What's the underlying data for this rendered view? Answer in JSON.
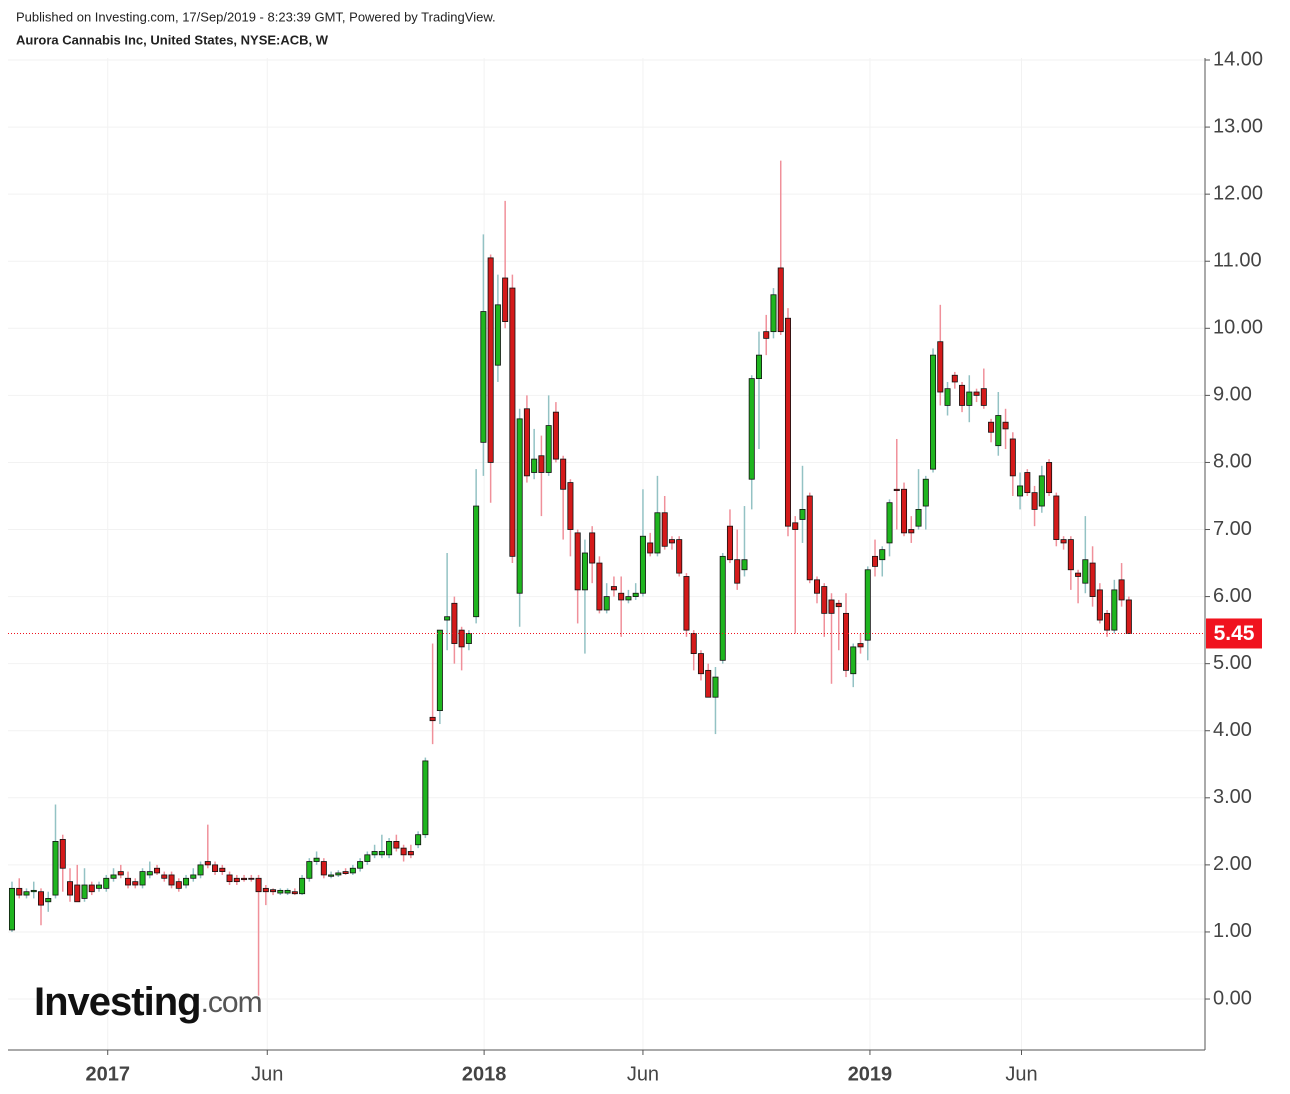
{
  "chart_data": {
    "type": "candlestick",
    "publisher": "Published on Investing.com, 17/Sep/2019 - 8:23:39 GMT, Powered by TradingView.",
    "title": "Aurora Cannabis Inc, United States, NYSE:ACB, W",
    "watermark": {
      "brand": "Investing",
      "suffix": ".com"
    },
    "up_color": "#1fb51f",
    "down_color": "#d41a1a",
    "up_wick_color": "#93c2c4",
    "down_wick_color": "#f0909a",
    "grid": true,
    "ylim": [
      -0.76,
      14.03
    ],
    "yticks": [
      {
        "value": 0,
        "label": "0.00"
      },
      {
        "value": 1,
        "label": "1.00"
      },
      {
        "value": 2,
        "label": "2.00"
      },
      {
        "value": 3,
        "label": "3.00"
      },
      {
        "value": 4,
        "label": "4.00"
      },
      {
        "value": 5,
        "label": "5.00"
      },
      {
        "value": 6,
        "label": "6.00"
      },
      {
        "value": 7,
        "label": "7.00"
      },
      {
        "value": 8,
        "label": "8.00"
      },
      {
        "value": 9,
        "label": "9.00"
      },
      {
        "value": 10,
        "label": "10.00"
      },
      {
        "value": 11,
        "label": "11.00"
      },
      {
        "value": 12,
        "label": "12.00"
      },
      {
        "value": 13,
        "label": "13.00"
      },
      {
        "value": 14,
        "label": "14.00"
      }
    ],
    "xlim": [
      -0.55,
      164.5
    ],
    "xticks": [
      {
        "value": 13.2,
        "label": "2017"
      },
      {
        "value": 35.2,
        "label": "Jun"
      },
      {
        "value": 65.1,
        "label": "2018"
      },
      {
        "value": 87.0,
        "label": "Jun"
      },
      {
        "value": 118.3,
        "label": "2019"
      },
      {
        "value": 139.2,
        "label": "Jun"
      }
    ],
    "last_price": 5.45,
    "last_price_color": "#f0131e",
    "ohlc": [
      [
        1.03,
        1.75,
        1.0,
        1.65
      ],
      [
        1.65,
        1.8,
        1.5,
        1.55
      ],
      [
        1.55,
        1.65,
        1.5,
        1.6
      ],
      [
        1.6,
        1.75,
        1.5,
        1.62
      ],
      [
        1.6,
        1.65,
        1.1,
        1.4
      ],
      [
        1.45,
        1.6,
        1.3,
        1.5
      ],
      [
        1.55,
        2.9,
        1.5,
        2.35
      ],
      [
        2.38,
        2.45,
        1.6,
        1.95
      ],
      [
        1.75,
        1.95,
        1.45,
        1.55
      ],
      [
        1.7,
        2.0,
        1.45,
        1.45
      ],
      [
        1.5,
        1.95,
        1.45,
        1.7
      ],
      [
        1.7,
        1.75,
        1.55,
        1.6
      ],
      [
        1.65,
        1.75,
        1.6,
        1.7
      ],
      [
        1.65,
        1.85,
        1.6,
        1.8
      ],
      [
        1.8,
        1.95,
        1.75,
        1.85
      ],
      [
        1.9,
        2.0,
        1.8,
        1.85
      ],
      [
        1.8,
        1.9,
        1.65,
        1.7
      ],
      [
        1.75,
        1.8,
        1.65,
        1.7
      ],
      [
        1.7,
        1.95,
        1.65,
        1.9
      ],
      [
        1.85,
        2.05,
        1.8,
        1.9
      ],
      [
        1.95,
        2.0,
        1.85,
        1.88
      ],
      [
        1.85,
        1.9,
        1.75,
        1.8
      ],
      [
        1.85,
        1.9,
        1.65,
        1.7
      ],
      [
        1.75,
        1.8,
        1.6,
        1.65
      ],
      [
        1.7,
        1.85,
        1.65,
        1.8
      ],
      [
        1.8,
        1.95,
        1.75,
        1.85
      ],
      [
        1.85,
        2.05,
        1.8,
        2.0
      ],
      [
        2.05,
        2.6,
        1.95,
        2.0
      ],
      [
        2.0,
        2.05,
        1.85,
        1.9
      ],
      [
        1.95,
        2.0,
        1.85,
        1.9
      ],
      [
        1.85,
        1.9,
        1.7,
        1.75
      ],
      [
        1.8,
        1.85,
        1.7,
        1.75
      ],
      [
        1.8,
        1.85,
        1.75,
        1.78
      ],
      [
        1.8,
        1.85,
        1.75,
        1.79
      ],
      [
        1.8,
        1.85,
        0.05,
        1.6
      ],
      [
        1.65,
        1.7,
        1.4,
        1.6
      ],
      [
        1.63,
        1.65,
        1.55,
        1.6
      ],
      [
        1.58,
        1.65,
        1.55,
        1.62
      ],
      [
        1.58,
        1.65,
        1.55,
        1.62
      ],
      [
        1.6,
        1.65,
        1.55,
        1.57
      ],
      [
        1.57,
        1.85,
        1.55,
        1.8
      ],
      [
        1.8,
        2.1,
        1.75,
        2.05
      ],
      [
        2.05,
        2.2,
        2.0,
        2.1
      ],
      [
        2.05,
        2.1,
        1.8,
        1.85
      ],
      [
        1.83,
        1.9,
        1.8,
        1.85
      ],
      [
        1.85,
        1.92,
        1.82,
        1.88
      ],
      [
        1.9,
        1.95,
        1.85,
        1.87
      ],
      [
        1.88,
        2.0,
        1.85,
        1.95
      ],
      [
        1.95,
        2.1,
        1.9,
        2.05
      ],
      [
        2.05,
        2.2,
        2.0,
        2.15
      ],
      [
        2.15,
        2.3,
        2.1,
        2.2
      ],
      [
        2.15,
        2.45,
        2.1,
        2.2
      ],
      [
        2.15,
        2.4,
        2.1,
        2.35
      ],
      [
        2.35,
        2.45,
        2.2,
        2.25
      ],
      [
        2.25,
        2.3,
        2.05,
        2.15
      ],
      [
        2.2,
        2.3,
        2.1,
        2.15
      ],
      [
        2.3,
        2.5,
        2.25,
        2.45
      ],
      [
        2.45,
        3.6,
        2.4,
        3.55
      ],
      [
        4.2,
        5.3,
        3.8,
        4.15
      ],
      [
        4.3,
        5.5,
        4.1,
        5.5
      ],
      [
        5.65,
        6.65,
        5.2,
        5.7
      ],
      [
        5.9,
        6.0,
        5.0,
        5.3
      ],
      [
        5.5,
        5.55,
        4.9,
        5.25
      ],
      [
        5.3,
        5.5,
        5.2,
        5.45
      ],
      [
        5.7,
        7.9,
        5.6,
        7.35
      ],
      [
        8.3,
        11.4,
        7.8,
        10.25
      ],
      [
        11.05,
        11.1,
        7.4,
        8.0
      ],
      [
        9.45,
        10.8,
        9.2,
        10.35
      ],
      [
        10.75,
        11.9,
        10.0,
        10.1
      ],
      [
        10.6,
        10.8,
        6.5,
        6.6
      ],
      [
        6.05,
        8.8,
        5.55,
        8.65
      ],
      [
        8.8,
        9.0,
        7.7,
        7.8
      ],
      [
        7.85,
        8.5,
        7.75,
        8.05
      ],
      [
        8.1,
        8.4,
        7.2,
        7.85
      ],
      [
        7.85,
        9.0,
        7.8,
        8.55
      ],
      [
        8.75,
        8.9,
        8.0,
        8.05
      ],
      [
        8.05,
        8.1,
        6.85,
        7.6
      ],
      [
        7.7,
        7.75,
        6.6,
        7.0
      ],
      [
        6.95,
        7.0,
        5.6,
        6.1
      ],
      [
        6.1,
        6.85,
        5.15,
        6.65
      ],
      [
        6.95,
        7.05,
        6.2,
        6.5
      ],
      [
        6.5,
        6.6,
        5.75,
        5.8
      ],
      [
        5.8,
        6.2,
        5.75,
        6.0
      ],
      [
        6.15,
        6.3,
        6.0,
        6.1
      ],
      [
        6.05,
        6.3,
        5.4,
        5.95
      ],
      [
        5.95,
        6.1,
        5.9,
        6.0
      ],
      [
        6.0,
        6.2,
        5.95,
        6.05
      ],
      [
        6.05,
        7.6,
        6.0,
        6.9
      ],
      [
        6.8,
        6.95,
        6.6,
        6.65
      ],
      [
        6.65,
        7.8,
        6.6,
        7.25
      ],
      [
        7.25,
        7.5,
        6.7,
        6.75
      ],
      [
        6.85,
        6.9,
        6.7,
        6.8
      ],
      [
        6.85,
        6.9,
        6.3,
        6.35
      ],
      [
        6.3,
        6.35,
        5.4,
        5.5
      ],
      [
        5.45,
        5.5,
        4.9,
        5.15
      ],
      [
        5.15,
        5.2,
        4.75,
        4.85
      ],
      [
        4.9,
        5.0,
        4.5,
        4.5
      ],
      [
        4.5,
        4.95,
        3.95,
        4.8
      ],
      [
        5.05,
        6.65,
        5.0,
        6.6
      ],
      [
        7.05,
        7.3,
        6.5,
        6.55
      ],
      [
        6.55,
        7.0,
        6.1,
        6.2
      ],
      [
        6.4,
        7.35,
        6.3,
        6.55
      ],
      [
        7.75,
        9.3,
        7.3,
        9.25
      ],
      [
        9.25,
        9.95,
        8.2,
        9.6
      ],
      [
        9.95,
        10.2,
        9.6,
        9.85
      ],
      [
        9.95,
        10.6,
        9.85,
        10.5
      ],
      [
        10.9,
        12.5,
        9.9,
        9.95
      ],
      [
        10.15,
        10.3,
        6.9,
        7.05
      ],
      [
        7.1,
        7.2,
        5.45,
        7.0
      ],
      [
        7.15,
        7.95,
        6.8,
        7.3
      ],
      [
        7.5,
        7.55,
        6.2,
        6.25
      ],
      [
        6.25,
        6.3,
        5.9,
        6.05
      ],
      [
        6.15,
        6.2,
        5.4,
        5.75
      ],
      [
        5.95,
        6.05,
        4.7,
        5.75
      ],
      [
        5.9,
        5.95,
        5.2,
        5.85
      ],
      [
        5.75,
        6.05,
        4.8,
        4.9
      ],
      [
        4.85,
        5.3,
        4.65,
        5.25
      ],
      [
        5.3,
        5.45,
        5.15,
        5.25
      ],
      [
        5.35,
        6.45,
        5.05,
        6.4
      ],
      [
        6.6,
        6.85,
        6.3,
        6.45
      ],
      [
        6.55,
        6.75,
        6.3,
        6.7
      ],
      [
        6.8,
        7.45,
        6.6,
        7.4
      ],
      [
        7.6,
        8.35,
        7.0,
        7.58
      ],
      [
        7.6,
        7.7,
        6.9,
        6.95
      ],
      [
        7.0,
        7.2,
        6.8,
        6.95
      ],
      [
        7.05,
        7.9,
        7.0,
        7.3
      ],
      [
        7.35,
        7.8,
        7.0,
        7.75
      ],
      [
        7.9,
        9.7,
        7.85,
        9.6
      ],
      [
        9.8,
        10.35,
        8.85,
        9.05
      ],
      [
        8.85,
        9.2,
        8.7,
        9.1
      ],
      [
        9.3,
        9.35,
        9.1,
        9.2
      ],
      [
        9.15,
        9.2,
        8.75,
        8.85
      ],
      [
        8.85,
        9.3,
        8.6,
        9.05
      ],
      [
        9.05,
        9.1,
        8.9,
        9.0
      ],
      [
        9.1,
        9.4,
        8.8,
        8.85
      ],
      [
        8.6,
        8.65,
        8.3,
        8.45
      ],
      [
        8.25,
        9.05,
        8.1,
        8.7
      ],
      [
        8.6,
        8.8,
        8.2,
        8.5
      ],
      [
        8.35,
        8.45,
        7.5,
        7.8
      ],
      [
        7.5,
        7.85,
        7.3,
        7.65
      ],
      [
        7.85,
        7.9,
        7.5,
        7.55
      ],
      [
        7.55,
        7.65,
        7.05,
        7.3
      ],
      [
        7.35,
        7.95,
        7.25,
        7.8
      ],
      [
        8.0,
        8.05,
        7.5,
        7.55
      ],
      [
        7.5,
        7.55,
        6.75,
        6.85
      ],
      [
        6.85,
        6.9,
        6.7,
        6.8
      ],
      [
        6.85,
        6.9,
        6.1,
        6.4
      ],
      [
        6.35,
        6.4,
        5.9,
        6.3
      ],
      [
        6.2,
        7.2,
        6.05,
        6.55
      ],
      [
        6.5,
        6.75,
        5.85,
        6.0
      ],
      [
        6.1,
        6.2,
        5.6,
        5.65
      ],
      [
        5.75,
        5.8,
        5.4,
        5.5
      ],
      [
        5.5,
        6.25,
        5.45,
        6.1
      ],
      [
        6.25,
        6.5,
        5.85,
        5.95
      ],
      [
        5.95,
        6.0,
        5.45,
        5.45
      ]
    ]
  }
}
